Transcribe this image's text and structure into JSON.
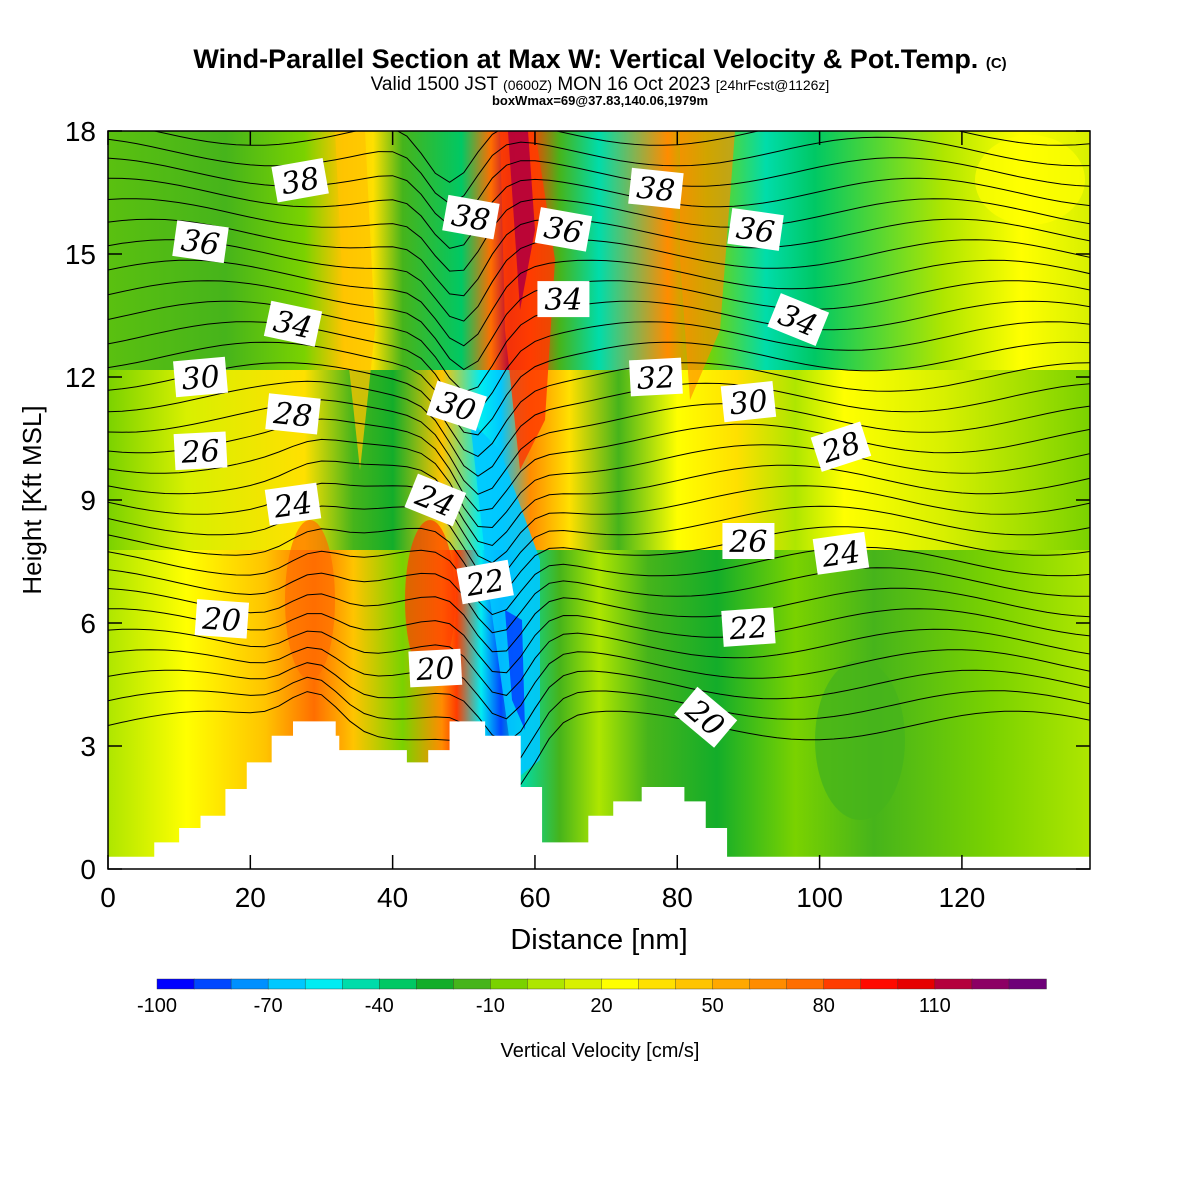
{
  "header": {
    "title_main": "Wind-Parallel Section at Max W: Vertical Velocity & Pot.Temp.",
    "title_copyright": "(C)",
    "valid_prefix": "Valid 1500 JST",
    "valid_zulu": "(0600Z)",
    "valid_date": "MON 16 Oct 2023",
    "forecast": "[24hrFcst@1126z]",
    "boxwmax": "boxWmax=69@37.83,140.06,1979m"
  },
  "chart_data": {
    "type": "heatmap",
    "title": "Wind-Parallel Section at Max W: Vertical Velocity & Pot.Temp.",
    "xlabel": "Distance [nm]",
    "ylabel": "Height [Kft MSL]",
    "xlim": [
      0,
      138
    ],
    "ylim": [
      0,
      18
    ],
    "x_ticks": [
      0,
      20,
      40,
      60,
      80,
      100,
      120
    ],
    "y_ticks": [
      0,
      3,
      6,
      9,
      12,
      15,
      18
    ],
    "colorbar": {
      "label": "Vertical Velocity [cm/s]",
      "min": -100,
      "max": 130,
      "step": 10,
      "tick_labels": [
        "-100",
        "-70",
        "-40",
        "-10",
        "20",
        "50",
        "80",
        "110"
      ],
      "colors": [
        "#0000ff",
        "#0047ff",
        "#0090ff",
        "#00c8ff",
        "#00ecf2",
        "#00dcaa",
        "#00c864",
        "#13ad2a",
        "#46b41b",
        "#7ad200",
        "#aee600",
        "#d8f000",
        "#ffff00",
        "#ffe000",
        "#ffc400",
        "#ffa800",
        "#ff8c00",
        "#ff6e00",
        "#ff3c00",
        "#ff0a00",
        "#e60000",
        "#b4003c",
        "#8c0064",
        "#6e0078"
      ]
    },
    "contour_field": "Potential Temperature",
    "contour_labels": [
      {
        "text": "38",
        "x": 27,
        "y": 16.8
      },
      {
        "text": "36",
        "x": 13,
        "y": 15.3
      },
      {
        "text": "34",
        "x": 26,
        "y": 13.3
      },
      {
        "text": "30",
        "x": 13,
        "y": 12.0
      },
      {
        "text": "28",
        "x": 26,
        "y": 11.1
      },
      {
        "text": "26",
        "x": 13,
        "y": 10.2
      },
      {
        "text": "24",
        "x": 26,
        "y": 8.9
      },
      {
        "text": "20",
        "x": 16,
        "y": 6.1
      },
      {
        "text": "38",
        "x": 51,
        "y": 15.9
      },
      {
        "text": "36",
        "x": 64,
        "y": 15.6
      },
      {
        "text": "34",
        "x": 64,
        "y": 13.9
      },
      {
        "text": "30",
        "x": 49,
        "y": 11.3
      },
      {
        "text": "24",
        "x": 46,
        "y": 9.0
      },
      {
        "text": "22",
        "x": 53,
        "y": 7.0
      },
      {
        "text": "20",
        "x": 46,
        "y": 4.9
      },
      {
        "text": "38",
        "x": 77,
        "y": 16.6
      },
      {
        "text": "36",
        "x": 91,
        "y": 15.6
      },
      {
        "text": "34",
        "x": 97,
        "y": 13.4
      },
      {
        "text": "32",
        "x": 77,
        "y": 12.0
      },
      {
        "text": "30",
        "x": 90,
        "y": 11.4
      },
      {
        "text": "28",
        "x": 103,
        "y": 10.3
      },
      {
        "text": "26",
        "x": 90,
        "y": 8.0
      },
      {
        "text": "24",
        "x": 103,
        "y": 7.7
      },
      {
        "text": "22",
        "x": 90,
        "y": 5.9
      },
      {
        "text": "20",
        "x": 84,
        "y": 3.7
      }
    ],
    "terrain_kft": [
      [
        0,
        0.3
      ],
      [
        6.5,
        0.65
      ],
      [
        10,
        1.0
      ],
      [
        13,
        1.3
      ],
      [
        16.5,
        1.95
      ],
      [
        19.5,
        2.6
      ],
      [
        23,
        3.25
      ],
      [
        26,
        3.6
      ],
      [
        32,
        3.25
      ],
      [
        32.5,
        2.9
      ],
      [
        42,
        2.6
      ],
      [
        45,
        2.9
      ],
      [
        48,
        3.6
      ],
      [
        53,
        3.25
      ],
      [
        58,
        2.0
      ],
      [
        61,
        0.65
      ],
      [
        67.5,
        1.3
      ],
      [
        71,
        1.65
      ],
      [
        75,
        2.0
      ],
      [
        81,
        1.65
      ],
      [
        84,
        1.0
      ],
      [
        87,
        0.3
      ],
      [
        138,
        0.3
      ]
    ],
    "vertical_velocity_max_cm_s": 69
  }
}
